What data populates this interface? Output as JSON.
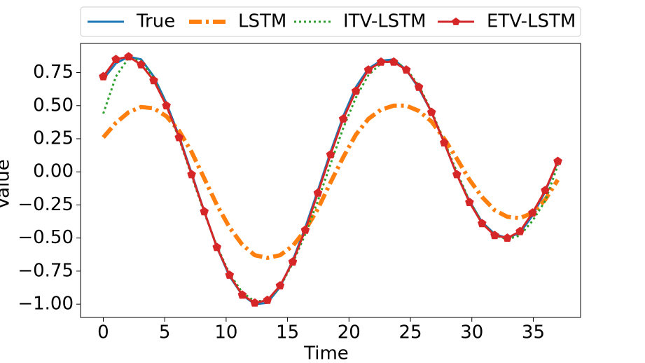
{
  "chart_data": {
    "type": "line",
    "xlabel": "Time",
    "ylabel": "Value",
    "x": [
      0,
      1.03,
      2.06,
      3.08,
      4.11,
      5.14,
      6.17,
      7.19,
      8.22,
      9.25,
      10.28,
      11.31,
      12.33,
      13.36,
      14.39,
      15.42,
      16.44,
      17.47,
      18.5,
      19.53,
      20.56,
      21.58,
      22.61,
      23.64,
      24.67,
      25.69,
      26.72,
      27.75,
      28.78,
      29.81,
      30.83,
      31.86,
      32.89,
      33.92,
      34.94,
      35.97,
      37
    ],
    "series": [
      {
        "name": "True",
        "color": "#1f77b4",
        "linestyle": "solid",
        "width": 3,
        "values": [
          0.7,
          0.82,
          0.87,
          0.85,
          0.72,
          0.52,
          0.27,
          -0.01,
          -0.3,
          -0.57,
          -0.79,
          -0.93,
          -1.0,
          -0.99,
          -0.87,
          -0.67,
          -0.42,
          -0.14,
          0.15,
          0.42,
          0.64,
          0.78,
          0.84,
          0.85,
          0.77,
          0.63,
          0.45,
          0.22,
          -0.02,
          -0.22,
          -0.38,
          -0.47,
          -0.5,
          -0.46,
          -0.33,
          -0.15,
          0.08
        ]
      },
      {
        "name": "LSTM",
        "color": "#ff7f0e",
        "linestyle": "dashdot",
        "width": 6,
        "values": [
          0.26,
          0.37,
          0.45,
          0.49,
          0.48,
          0.42,
          0.31,
          0.15,
          -0.05,
          -0.25,
          -0.42,
          -0.55,
          -0.63,
          -0.65,
          -0.63,
          -0.56,
          -0.44,
          -0.28,
          -0.08,
          0.11,
          0.28,
          0.4,
          0.47,
          0.5,
          0.5,
          0.46,
          0.38,
          0.25,
          0.1,
          -0.06,
          -0.19,
          -0.29,
          -0.34,
          -0.35,
          -0.31,
          -0.21,
          -0.06
        ]
      },
      {
        "name": "ITV-LSTM",
        "color": "#2ca02c",
        "linestyle": "dotted",
        "width": 3,
        "values": [
          0.44,
          0.72,
          0.86,
          0.84,
          0.71,
          0.5,
          0.25,
          -0.03,
          -0.31,
          -0.56,
          -0.77,
          -0.91,
          -0.98,
          -0.97,
          -0.87,
          -0.69,
          -0.47,
          -0.22,
          0.06,
          0.33,
          0.56,
          0.73,
          0.82,
          0.84,
          0.78,
          0.65,
          0.46,
          0.23,
          0.0,
          -0.22,
          -0.38,
          -0.48,
          -0.51,
          -0.48,
          -0.37,
          -0.22,
          0.05
        ]
      },
      {
        "name": "ETV-LSTM",
        "color": "#d62728",
        "linestyle": "solid",
        "width": 3,
        "marker": "pentagon",
        "values": [
          0.72,
          0.85,
          0.87,
          0.81,
          0.69,
          0.5,
          0.26,
          -0.02,
          -0.3,
          -0.57,
          -0.78,
          -0.93,
          -0.99,
          -0.97,
          -0.86,
          -0.68,
          -0.44,
          -0.16,
          0.13,
          0.4,
          0.61,
          0.77,
          0.83,
          0.83,
          0.77,
          0.64,
          0.45,
          0.22,
          -0.02,
          -0.23,
          -0.39,
          -0.48,
          -0.5,
          -0.45,
          -0.31,
          -0.14,
          0.08
        ]
      }
    ],
    "xlim": [
      -1.85,
      38.85
    ],
    "ylim": [
      -1.1,
      0.97
    ],
    "xticks": [
      0,
      5,
      10,
      15,
      20,
      25,
      30,
      35
    ],
    "yticks": [
      {
        "value": -1,
        "label": "−1.00"
      },
      {
        "value": -0.75,
        "label": "−0.75"
      },
      {
        "value": -0.5,
        "label": "−0.50"
      },
      {
        "value": -0.25,
        "label": "−0.25"
      },
      {
        "value": 0,
        "label": "0.00"
      },
      0.25,
      {
        "value": 0.5,
        "label": "0.50"
      },
      0.75
    ],
    "legend": "top"
  }
}
